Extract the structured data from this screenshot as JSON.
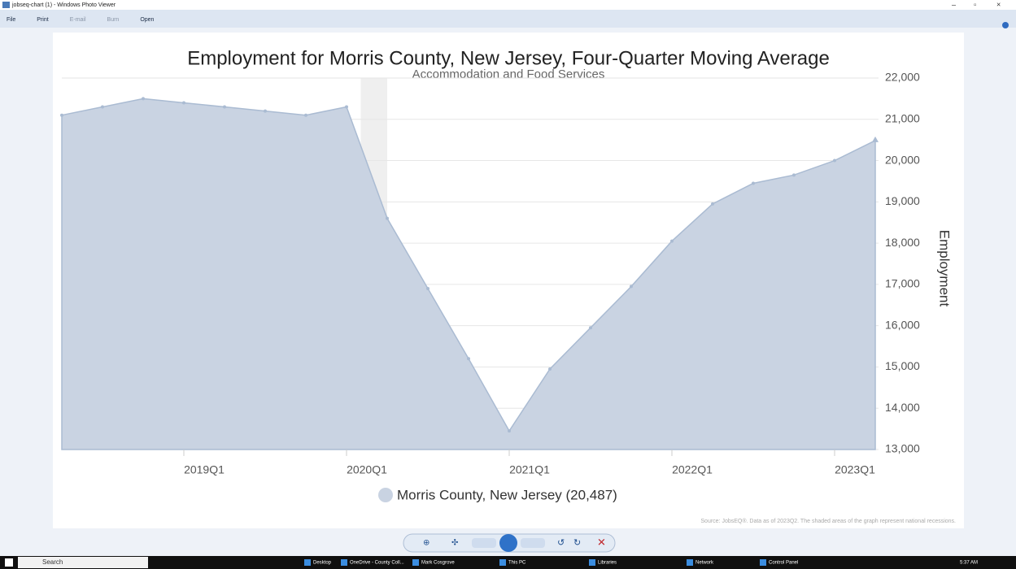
{
  "window": {
    "title": "jobseq-chart (1) - Windows Photo Viewer",
    "menu": [
      "File",
      "Print",
      "E-mail",
      "Burn",
      "Open"
    ],
    "taskbar": {
      "search": "Search",
      "items": [
        "Desktop",
        "OneDrive - County Coll...",
        "Mark Cosgrove",
        "This PC",
        "Libraries",
        "Network",
        "Control Panel"
      ],
      "clock": "5:37 AM"
    }
  },
  "chart_data": {
    "type": "area",
    "title": "Employment for Morris County, New Jersey, Four-Quarter Moving Average",
    "subtitle": "Accommodation and Food Services",
    "ylabel": "Employment",
    "source": "Source: JobsEQ®. Data as of 2023Q2. The shaded areas of the graph represent national recessions.",
    "categories": [
      null,
      null,
      null,
      "2019Q1",
      null,
      null,
      null,
      "2020Q1",
      null,
      null,
      null,
      "2021Q1",
      null,
      null,
      null,
      "2022Q1",
      null,
      null,
      null,
      "2023Q1",
      null
    ],
    "recession": [
      7,
      8
    ],
    "series": [
      {
        "name": "Morris County, New Jersey (20,487)",
        "color": "#c9d3e2",
        "values": [
          21100,
          21300,
          21500,
          21400,
          21300,
          21200,
          21100,
          21300,
          18600,
          16900,
          15200,
          13450,
          14950,
          15950,
          16950,
          18050,
          18950,
          19450,
          19650,
          20000,
          20487
        ]
      }
    ],
    "ylim": [
      13000,
      22000
    ],
    "yticks": [
      {
        "value": 13000,
        "label": "13,000"
      },
      {
        "value": 14000,
        "label": "14,000"
      },
      {
        "value": 15000,
        "label": "15,000"
      },
      {
        "value": 16000,
        "label": "16,000"
      },
      {
        "value": 17000,
        "label": "17,000"
      },
      {
        "value": 18000,
        "label": "18,000"
      },
      {
        "value": 19000,
        "label": "19,000"
      },
      {
        "value": 20000,
        "label": "20,000"
      },
      {
        "value": 21000,
        "label": "21,000"
      },
      {
        "value": 22000,
        "label": "22,000"
      }
    ],
    "grid": true,
    "y_axis_side": "right",
    "legend": "bottom"
  }
}
